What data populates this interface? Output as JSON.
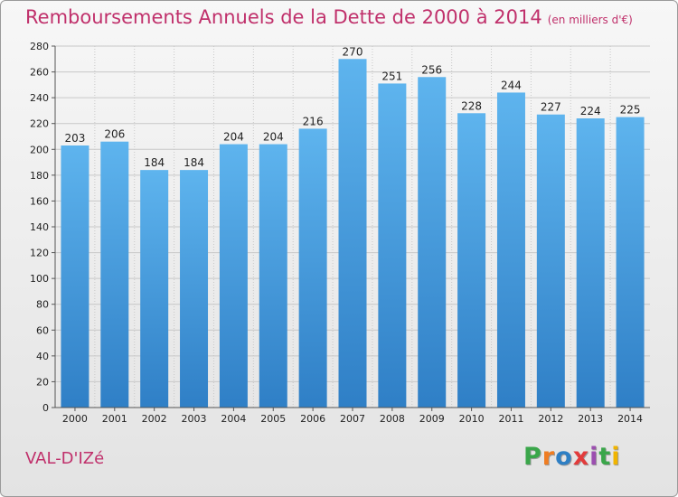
{
  "title": "Remboursements Annuels de la Dette de 2000 à 2014",
  "subtitle": "(en milliers d'€)",
  "commune": "VAL-D'IZé",
  "logo": {
    "letters": [
      "P",
      "r",
      "o",
      "x",
      "i",
      "t",
      "i"
    ],
    "colors": [
      "#3aa64a",
      "#ef7d22",
      "#2e7fc4",
      "#e23b3b",
      "#9c4fb0",
      "#3aa64a",
      "#f0b400"
    ]
  },
  "colors": {
    "title": "#c0306b",
    "bar_top": "#5eb4ee",
    "bar_bottom": "#2f7fc6",
    "grid": "#c8c8c8"
  },
  "chart_data": {
    "type": "bar",
    "categories": [
      "2000",
      "2001",
      "2002",
      "2003",
      "2004",
      "2005",
      "2006",
      "2007",
      "2008",
      "2009",
      "2010",
      "2011",
      "2012",
      "2013",
      "2014"
    ],
    "values": [
      203,
      206,
      184,
      184,
      204,
      204,
      216,
      270,
      251,
      256,
      228,
      244,
      227,
      224,
      225
    ],
    "yticks": [
      0,
      20,
      40,
      60,
      80,
      100,
      120,
      140,
      160,
      180,
      200,
      220,
      240,
      260,
      280
    ],
    "ylim": [
      0,
      280
    ],
    "grid": true,
    "xlabel": "",
    "ylabel": ""
  }
}
